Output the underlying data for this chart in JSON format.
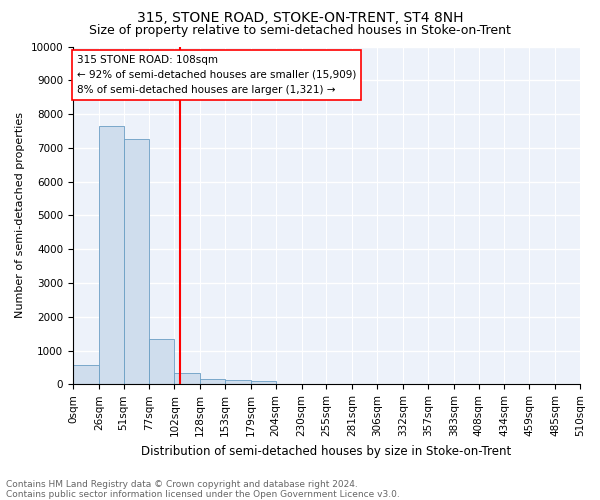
{
  "title": "315, STONE ROAD, STOKE-ON-TRENT, ST4 8NH",
  "subtitle": "Size of property relative to semi-detached houses in Stoke-on-Trent",
  "xlabel": "Distribution of semi-detached houses by size in Stoke-on-Trent",
  "ylabel": "Number of semi-detached properties",
  "footer_line1": "Contains HM Land Registry data © Crown copyright and database right 2024.",
  "footer_line2": "Contains public sector information licensed under the Open Government Licence v3.0.",
  "annotation_line1": "315 STONE ROAD: 108sqm",
  "annotation_line2": "← 92% of semi-detached houses are smaller (15,909)",
  "annotation_line3": "8% of semi-detached houses are larger (1,321) →",
  "property_size": 108,
  "bar_edges": [
    0,
    26,
    51,
    77,
    102,
    128,
    153,
    179,
    204,
    230,
    255,
    281,
    306,
    332,
    357,
    383,
    408,
    434,
    459,
    485,
    510
  ],
  "bar_heights": [
    580,
    7650,
    7250,
    1350,
    330,
    150,
    120,
    100,
    0,
    0,
    0,
    0,
    0,
    0,
    0,
    0,
    0,
    0,
    0,
    0
  ],
  "bar_color": "#cfdded",
  "bar_edge_color": "#6a9ec4",
  "red_line_x": 108,
  "ylim": [
    0,
    10000
  ],
  "yticks": [
    0,
    1000,
    2000,
    3000,
    4000,
    5000,
    6000,
    7000,
    8000,
    9000,
    10000
  ],
  "background_color": "#edf2fa",
  "grid_color": "#ffffff",
  "title_fontsize": 10,
  "subtitle_fontsize": 9,
  "axis_label_fontsize": 8.5,
  "ylabel_fontsize": 8,
  "tick_fontsize": 7.5,
  "annotation_fontsize": 7.5,
  "footer_fontsize": 6.5
}
